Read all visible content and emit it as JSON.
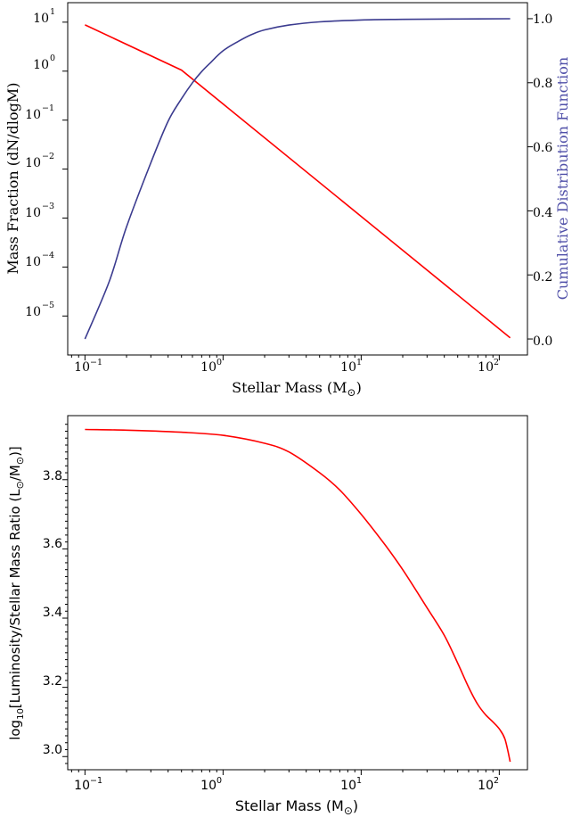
{
  "chart_data": [
    {
      "type": "line",
      "xlabel": "Stellar Mass (M",
      "xlabel_symbol": "⊙",
      "xlabel_close": ")",
      "ylabel_left": "Mass Fraction (dN/dlogM)",
      "ylabel_right": "Cumulative Distribution Function",
      "x_scale": "log",
      "xlim": [
        0.075,
        160
      ],
      "ylim_left": [
        1.6e-06,
        25
      ],
      "y_scale_left": "log",
      "ylim_right": [
        -0.05,
        1.05
      ],
      "x_tick_labels": [
        "10",
        "10",
        "10",
        "10"
      ],
      "x_tick_exponents": [
        "−1",
        "0",
        "1",
        "2"
      ],
      "y_left_tick_labels": [
        "10",
        "10",
        "10",
        "10",
        "10",
        "10",
        "10"
      ],
      "y_left_tick_exponents": [
        "1",
        "0",
        "−1",
        "−2",
        "−3",
        "−4",
        "−5"
      ],
      "y_right_tick_labels": [
        "1.0",
        "0.8",
        "0.6",
        "0.4",
        "0.2",
        "0.0"
      ],
      "series": [
        {
          "axis": "left",
          "color": "#ff0000",
          "x": [
            0.1,
            0.5,
            120
          ],
          "y": [
            8.8,
            1.05,
            3.6e-06
          ]
        },
        {
          "axis": "right",
          "color": "#3b3b8f",
          "x": [
            0.1,
            0.15,
            0.2,
            0.3,
            0.4,
            0.5,
            0.6,
            0.7,
            0.8,
            1.0,
            1.3,
            1.6,
            2.0,
            3.0,
            5.0,
            10,
            20,
            50,
            120
          ],
          "y": [
            0.0,
            0.18,
            0.35,
            0.55,
            0.68,
            0.75,
            0.8,
            0.835,
            0.86,
            0.9,
            0.93,
            0.95,
            0.965,
            0.98,
            0.99,
            0.996,
            0.998,
            0.999,
            1.0
          ]
        }
      ],
      "grid": false
    },
    {
      "type": "line",
      "xlabel": "Stellar Mass (M",
      "xlabel_symbol": "⊙",
      "xlabel_close": ")",
      "ylabel_pre": "log",
      "ylabel_sub": "10",
      "ylabel_main": "[Luminosity/Stellar Mass Ratio (L",
      "ylabel_sym1": "⊙",
      "ylabel_mid": "/M",
      "ylabel_sym2": "⊙",
      "ylabel_end": ")]",
      "x_scale": "log",
      "xlim": [
        0.075,
        160
      ],
      "ylim": [
        2.962,
        3.985
      ],
      "x_tick_labels": [
        "10",
        "10",
        "10",
        "10"
      ],
      "x_tick_exponents": [
        "−1",
        "0",
        "1",
        "2"
      ],
      "y_tick_labels": [
        "3.0",
        "3.2",
        "3.4",
        "3.6",
        "3.8"
      ],
      "series": [
        {
          "color": "#ff0000",
          "x": [
            0.1,
            0.2,
            0.5,
            1,
            2,
            3,
            5,
            7,
            10,
            15,
            20,
            30,
            40,
            50,
            60,
            70,
            80,
            90,
            100,
            110,
            120
          ],
          "y": [
            3.945,
            3.943,
            3.937,
            3.928,
            3.905,
            3.88,
            3.82,
            3.77,
            3.7,
            3.61,
            3.54,
            3.43,
            3.35,
            3.27,
            3.2,
            3.15,
            3.12,
            3.1,
            3.08,
            3.05,
            2.985
          ]
        }
      ],
      "grid": false
    }
  ]
}
